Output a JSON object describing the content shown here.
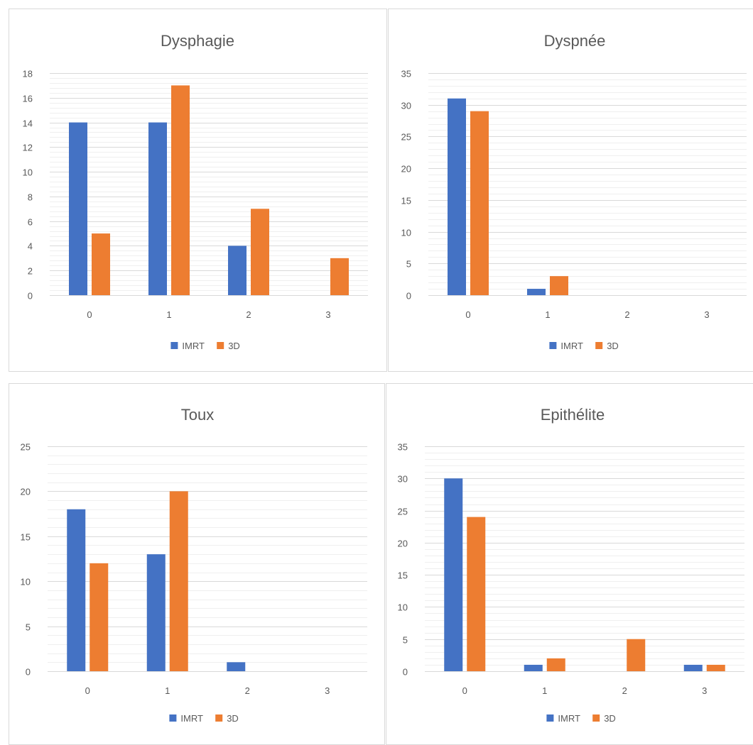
{
  "chart_data": [
    {
      "type": "bar",
      "title": "Dysphagie",
      "categories": [
        "0",
        "1",
        "2",
        "3"
      ],
      "series": [
        {
          "name": "IMRT",
          "values": [
            14,
            14,
            4,
            0
          ]
        },
        {
          "name": "3D",
          "values": [
            5,
            17,
            7,
            3
          ]
        }
      ],
      "ylim": [
        0,
        18
      ],
      "yticks": [
        0,
        2,
        4,
        6,
        8,
        10,
        12,
        14,
        16,
        18
      ],
      "grid": true,
      "legend": "bottom"
    },
    {
      "type": "bar",
      "title": "Dyspnée",
      "categories": [
        "0",
        "1",
        "2",
        "3"
      ],
      "series": [
        {
          "name": "IMRT",
          "values": [
            31,
            1,
            0,
            0
          ]
        },
        {
          "name": "3D",
          "values": [
            29,
            3,
            0,
            0
          ]
        }
      ],
      "ylim": [
        0,
        35
      ],
      "yticks": [
        0,
        5,
        10,
        15,
        20,
        25,
        30,
        35
      ],
      "grid": true,
      "legend": "bottom"
    },
    {
      "type": "bar",
      "title": "Toux",
      "categories": [
        "0",
        "1",
        "2",
        "3"
      ],
      "series": [
        {
          "name": "IMRT",
          "values": [
            18,
            13,
            1,
            0
          ]
        },
        {
          "name": "3D",
          "values": [
            12,
            20,
            0,
            0
          ]
        }
      ],
      "ylim": [
        0,
        25
      ],
      "yticks": [
        0,
        5,
        10,
        15,
        20,
        25
      ],
      "grid": true,
      "legend": "bottom"
    },
    {
      "type": "bar",
      "title": "Epithélite",
      "categories": [
        "0",
        "1",
        "2",
        "3"
      ],
      "series": [
        {
          "name": "IMRT",
          "values": [
            30,
            1,
            0,
            1
          ]
        },
        {
          "name": "3D",
          "values": [
            24,
            2,
            5,
            1
          ]
        }
      ],
      "ylim": [
        0,
        35
      ],
      "yticks": [
        0,
        5,
        10,
        15,
        20,
        25,
        30,
        35
      ],
      "grid": true,
      "legend": "bottom"
    }
  ],
  "colors": {
    "IMRT": "#4472c4",
    "3D": "#ed7d31",
    "major_grid": "#d9d9d9",
    "minor_grid": "#efefef",
    "text": "#595959"
  }
}
